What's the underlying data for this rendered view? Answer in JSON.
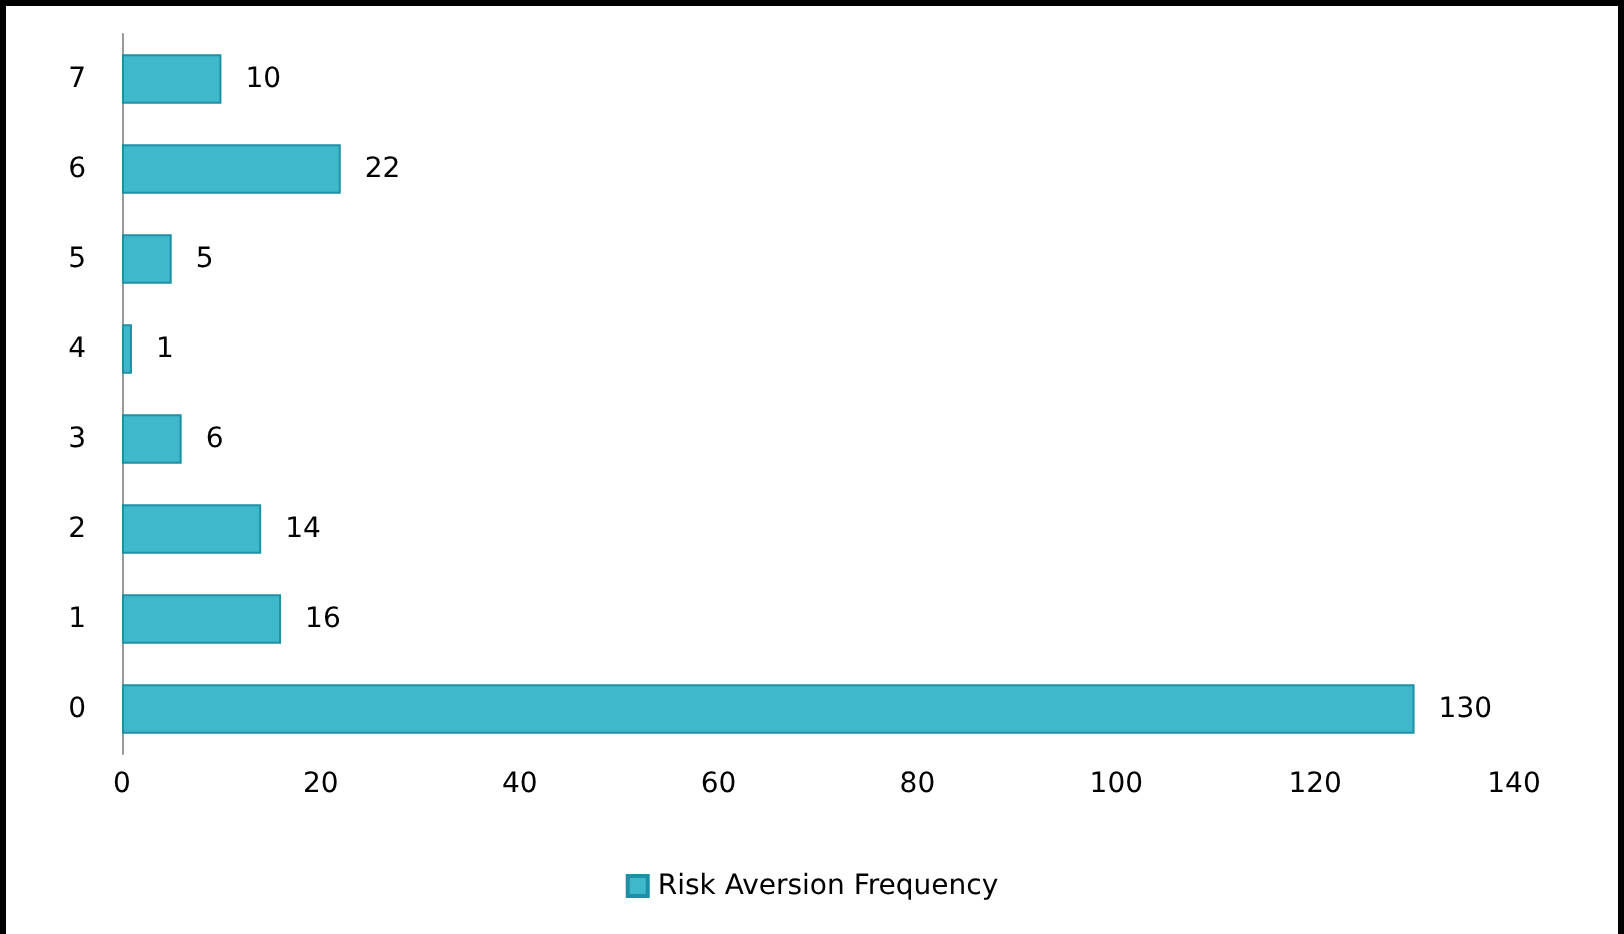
{
  "chart_data": {
    "type": "bar",
    "orientation": "horizontal",
    "categories": [
      "7",
      "6",
      "5",
      "4",
      "3",
      "2",
      "1",
      "0"
    ],
    "series": [
      {
        "name": "Risk Aversion Frequency",
        "color": "#3fb8cc",
        "values": [
          10,
          22,
          5,
          1,
          6,
          14,
          16,
          130
        ]
      }
    ],
    "xlim": [
      0,
      140
    ],
    "xticks": [
      0,
      20,
      40,
      60,
      80,
      100,
      120,
      140
    ],
    "data_labels": true,
    "grid": false,
    "legend": "bottom"
  }
}
